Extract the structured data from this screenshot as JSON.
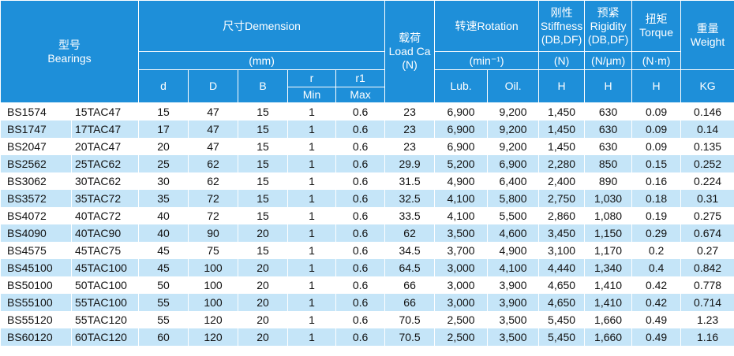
{
  "header": {
    "model": [
      "型号",
      "Bearings"
    ],
    "dimension": "尺寸Demension",
    "dimension_unit": "(mm)",
    "d": "d",
    "D": "D",
    "B": "B",
    "r": "r",
    "r1": "r1",
    "r_min": "Min",
    "r1_max": "Max",
    "load": [
      "载荷",
      "Load Ca",
      "(N)"
    ],
    "rotation": "转速Rotation",
    "rotation_unit": "(min⁻¹)",
    "lub": "Lub.",
    "oil": "Oil.",
    "stiffness": [
      "刚性",
      "Stiffness",
      "(DB,DF)"
    ],
    "stiffness_unit": "(N)",
    "stiffness_sym": "H",
    "rigidity": [
      "预紧",
      "Rigidity",
      "(DB,DF)"
    ],
    "rigidity_unit": "(N/μm)",
    "rigidity_sym": "H",
    "torque": [
      "扭矩",
      "Torque"
    ],
    "torque_unit": "(N·m)",
    "torque_sym": "H",
    "weight": [
      "重量",
      "Weight"
    ],
    "weight_unit": "KG"
  },
  "table": {
    "rows": [
      [
        "BS1574",
        "15TAC47",
        "15",
        "47",
        "15",
        "1",
        "0.6",
        "23",
        "6,900",
        "9,200",
        "1,450",
        "630",
        "0.09",
        "0.146"
      ],
      [
        "BS1747",
        "17TAC47",
        "17",
        "47",
        "15",
        "1",
        "0.6",
        "23",
        "6,900",
        "9,200",
        "1,450",
        "630",
        "0.09",
        "0.14"
      ],
      [
        "BS2047",
        "20TAC47",
        "20",
        "47",
        "15",
        "1",
        "0.6",
        "23",
        "6,900",
        "9,200",
        "1,450",
        "630",
        "0.09",
        "0.135"
      ],
      [
        "BS2562",
        "25TAC62",
        "25",
        "62",
        "15",
        "1",
        "0.6",
        "29.9",
        "5,200",
        "6,900",
        "2,280",
        "850",
        "0.15",
        "0.252"
      ],
      [
        "BS3062",
        "30TAC62",
        "30",
        "62",
        "15",
        "1",
        "0.6",
        "31.5",
        "4,900",
        "6,400",
        "2,400",
        "890",
        "0.16",
        "0.224"
      ],
      [
        "BS3572",
        "35TAC72",
        "35",
        "72",
        "15",
        "1",
        "0.6",
        "32.5",
        "4,100",
        "5,800",
        "2,750",
        "1,030",
        "0.18",
        "0.31"
      ],
      [
        "BS4072",
        "40TAC72",
        "40",
        "72",
        "15",
        "1",
        "0.6",
        "33.5",
        "4,100",
        "5,500",
        "2,860",
        "1,080",
        "0.19",
        "0.275"
      ],
      [
        "BS4090",
        "40TAC90",
        "40",
        "90",
        "20",
        "1",
        "0.6",
        "62",
        "3,500",
        "4,600",
        "3,450",
        "1,150",
        "0.29",
        "0.674"
      ],
      [
        "BS4575",
        "45TAC75",
        "45",
        "75",
        "15",
        "1",
        "0.6",
        "34.5",
        "3,700",
        "4,900",
        "3,100",
        "1,170",
        "0.2",
        "0.27"
      ],
      [
        "BS45100",
        "45TAC100",
        "45",
        "100",
        "20",
        "1",
        "0.6",
        "64.5",
        "3,000",
        "4,100",
        "4,440",
        "1,340",
        "0.4",
        "0.842"
      ],
      [
        "BS50100",
        "50TAC100",
        "50",
        "100",
        "20",
        "1",
        "0.6",
        "66",
        "3,000",
        "3,900",
        "4,650",
        "1,410",
        "0.42",
        "0.778"
      ],
      [
        "BS55100",
        "55TAC100",
        "55",
        "100",
        "20",
        "1",
        "0.6",
        "66",
        "3,000",
        "3,900",
        "4,650",
        "1,410",
        "0.42",
        "0.714"
      ],
      [
        "BS55120",
        "55TAC120",
        "55",
        "120",
        "20",
        "1",
        "0.6",
        "70.5",
        "2,500",
        "3,500",
        "5,450",
        "1,660",
        "0.49",
        "1.23"
      ],
      [
        "BS60120",
        "60TAC120",
        "60",
        "120",
        "20",
        "1",
        "0.6",
        "70.5",
        "2,500",
        "3,500",
        "5,450",
        "1,660",
        "0.49",
        "1.16"
      ]
    ]
  }
}
